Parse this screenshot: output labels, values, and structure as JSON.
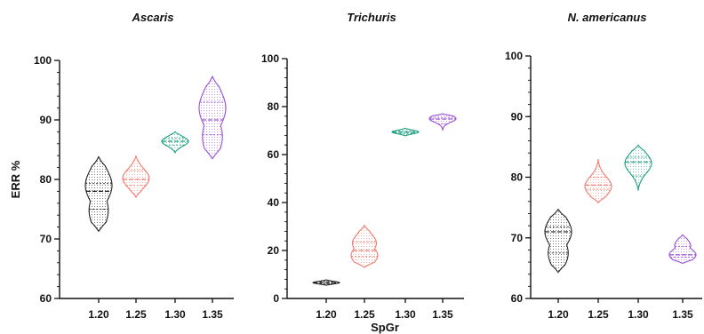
{
  "chart_data": [
    {
      "type": "violin",
      "title": "Ascaris",
      "ylabel": "ERR %",
      "xlabel": "",
      "ylim": [
        60,
        100
      ],
      "yticks": [
        60,
        70,
        80,
        90,
        100
      ],
      "categories": [
        "1.20",
        "1.25",
        "1.30",
        "1.35"
      ],
      "colors": [
        "#222222",
        "#f07a6e",
        "#1a9e7f",
        "#9b4fd6"
      ],
      "violins": [
        {
          "min": 71.3,
          "q1": 75.0,
          "median": 78.0,
          "q3": 79.3,
          "max": 83.8,
          "bulges": [
            {
              "y": 79.0,
              "w": 1.0
            },
            {
              "y": 74.8,
              "w": 0.72
            }
          ]
        },
        {
          "min": 77.0,
          "q1": 79.0,
          "median": 80.0,
          "q3": 81.5,
          "max": 84.0,
          "bulges": [
            {
              "y": 80.2,
              "w": 1.0
            }
          ]
        },
        {
          "min": 84.5,
          "q1": 85.8,
          "median": 86.4,
          "q3": 86.9,
          "max": 88.0,
          "bulges": [
            {
              "y": 86.4,
              "w": 1.0
            }
          ]
        },
        {
          "min": 83.5,
          "q1": 87.5,
          "median": 90.0,
          "q3": 93.0,
          "max": 97.3,
          "bulges": [
            {
              "y": 92.0,
              "w": 1.0
            },
            {
              "y": 87.2,
              "w": 0.75
            }
          ]
        }
      ]
    },
    {
      "type": "violin",
      "title": "Trichuris",
      "ylabel": "",
      "xlabel": "SpGr",
      "ylim": [
        0,
        100
      ],
      "yticks": [
        0,
        20,
        40,
        60,
        80,
        100
      ],
      "categories": [
        "1.20",
        "1.25",
        "1.30",
        "1.35"
      ],
      "colors": [
        "#222222",
        "#f07a6e",
        "#1a9e7f",
        "#9b4fd6"
      ],
      "violins": [
        {
          "min": 5.5,
          "q1": 6.2,
          "median": 6.6,
          "q3": 7.0,
          "max": 7.8,
          "bulges": [
            {
              "y": 6.6,
              "w": 1.0
            }
          ]
        },
        {
          "min": 13.0,
          "q1": 17.5,
          "median": 20.0,
          "q3": 23.5,
          "max": 30.5,
          "bulges": [
            {
              "y": 23.0,
              "w": 0.9
            },
            {
              "y": 18.0,
              "w": 1.0
            }
          ]
        },
        {
          "min": 67.8,
          "q1": 68.8,
          "median": 69.3,
          "q3": 69.9,
          "max": 71.0,
          "bulges": [
            {
              "y": 69.4,
              "w": 1.0
            }
          ]
        },
        {
          "min": 70.0,
          "q1": 72.8,
          "median": 74.8,
          "q3": 75.5,
          "max": 77.0,
          "bulges": [
            {
              "y": 75.0,
              "w": 1.0
            }
          ]
        }
      ]
    },
    {
      "type": "violin",
      "title": "N. americanus",
      "ylabel": "",
      "xlabel": "",
      "ylim": [
        60,
        100
      ],
      "yticks": [
        60,
        70,
        80,
        90,
        100
      ],
      "categories": [
        "1.20",
        "1.25",
        "1.30",
        "1.35"
      ],
      "colors": [
        "#222222",
        "#f07a6e",
        "#1a9e7f",
        "#9b4fd6"
      ],
      "violins": [
        {
          "min": 64.3,
          "q1": 67.5,
          "median": 71.0,
          "q3": 71.8,
          "max": 74.7,
          "bulges": [
            {
              "y": 71.0,
              "w": 1.0
            },
            {
              "y": 67.5,
              "w": 0.75
            }
          ]
        },
        {
          "min": 75.8,
          "q1": 78.0,
          "median": 78.7,
          "q3": 80.0,
          "max": 83.0,
          "bulges": [
            {
              "y": 78.5,
              "w": 1.0
            }
          ]
        },
        {
          "min": 77.8,
          "q1": 80.2,
          "median": 82.5,
          "q3": 83.3,
          "max": 85.3,
          "bulges": [
            {
              "y": 82.3,
              "w": 1.0
            }
          ]
        },
        {
          "min": 65.8,
          "q1": 66.8,
          "median": 67.2,
          "q3": 68.6,
          "max": 70.5,
          "bulges": [
            {
              "y": 67.2,
              "w": 1.0
            },
            {
              "y": 68.7,
              "w": 0.6
            }
          ]
        }
      ]
    }
  ]
}
